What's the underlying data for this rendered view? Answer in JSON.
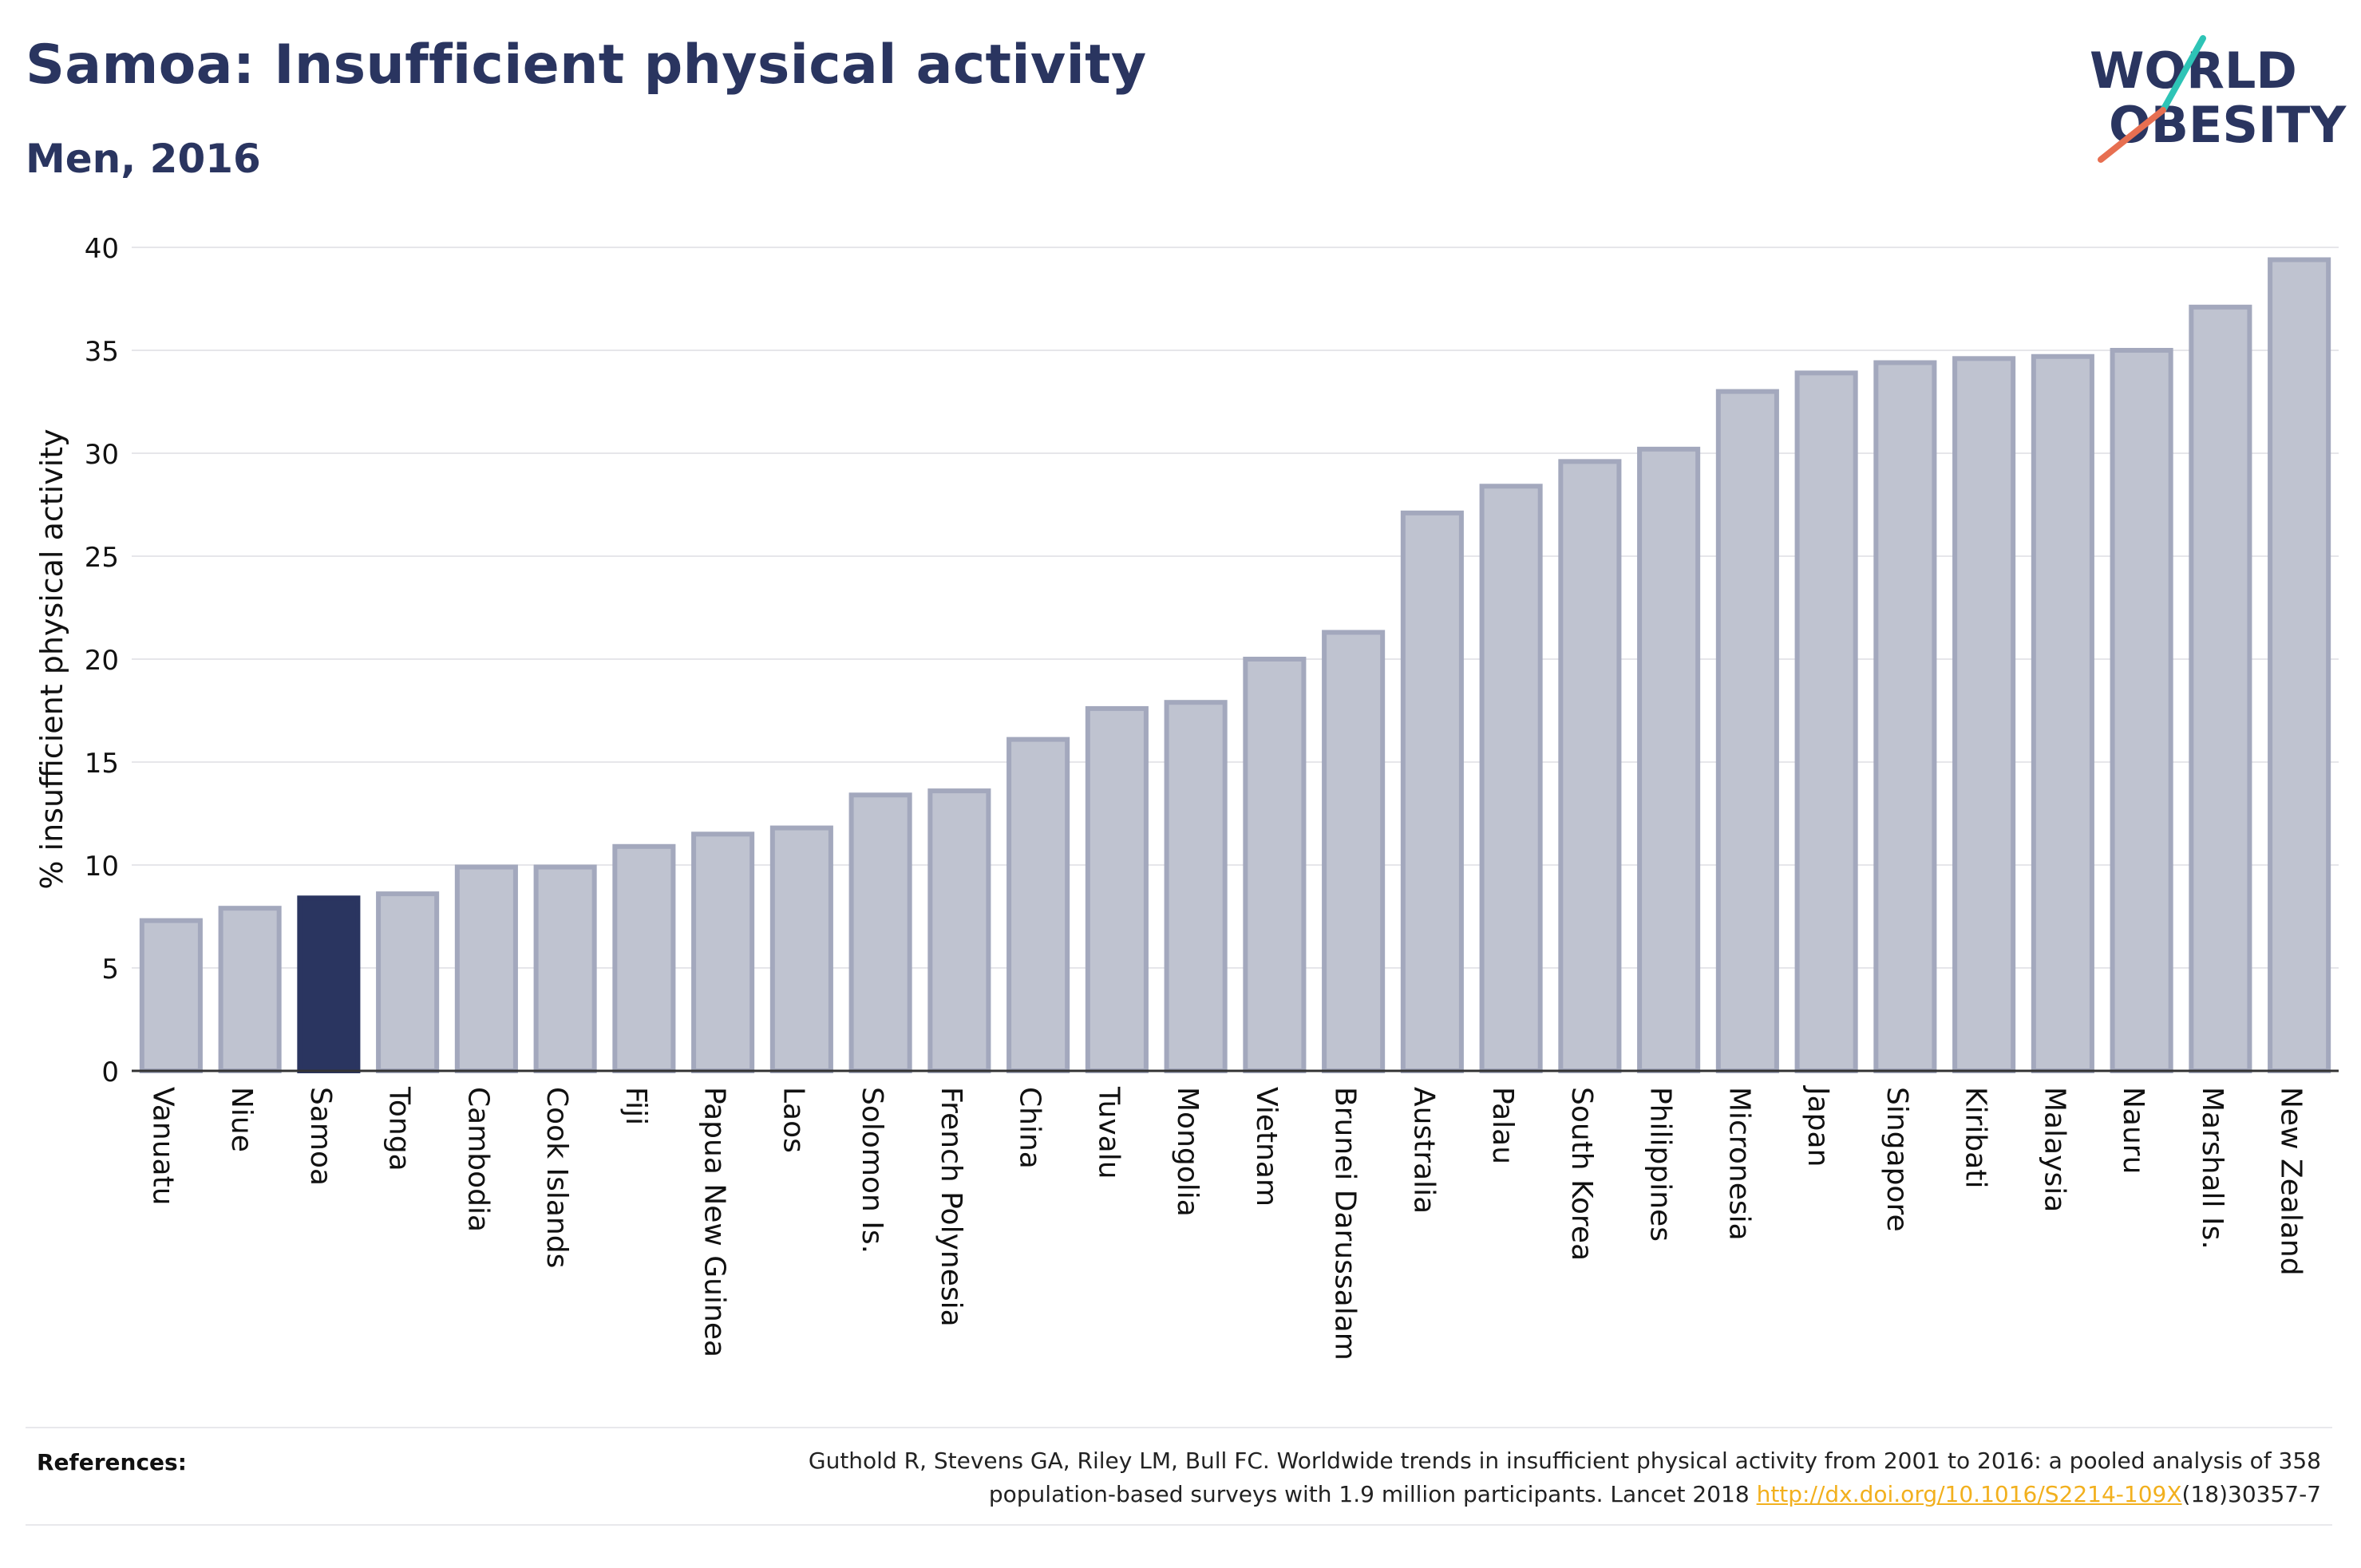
{
  "header": {
    "title": "Samoa: Insufficient physical activity",
    "subtitle": "Men, 2016"
  },
  "logo": {
    "line1": "WORLD",
    "line2": "OBESITY",
    "colors": {
      "text": "#2a3560",
      "slash_top": "#2ec4b6",
      "slash_bottom": "#e76f51"
    }
  },
  "chart_data": {
    "type": "bar",
    "ylabel": "% insufficient physical activity",
    "xlabel": "",
    "ylim": [
      0,
      40
    ],
    "yticks": [
      0,
      5,
      10,
      15,
      20,
      25,
      30,
      35,
      40
    ],
    "grid": true,
    "highlight": "Samoa",
    "colors": {
      "bar": "#bfc3d0",
      "bar_edge": "#a3a8bd",
      "highlight": "#2a3560",
      "grid": "#e6e6ea",
      "axis": "#333333"
    },
    "categories": [
      "Vanuatu",
      "Niue",
      "Samoa",
      "Tonga",
      "Cambodia",
      "Cook Islands",
      "Fiji",
      "Papua New Guinea",
      "Laos",
      "Solomon Is.",
      "French Polynesia",
      "China",
      "Tuvalu",
      "Mongolia",
      "Vietnam",
      "Brunei Darussalam",
      "Australia",
      "Palau",
      "South Korea",
      "Philippines",
      "Micronesia",
      "Japan",
      "Singapore",
      "Kiribati",
      "Malaysia",
      "Nauru",
      "Marshall Is.",
      "New Zealand"
    ],
    "values": [
      7.3,
      7.9,
      8.4,
      8.6,
      9.9,
      9.9,
      10.9,
      11.5,
      11.8,
      13.4,
      13.6,
      16.1,
      17.6,
      17.9,
      20.0,
      21.3,
      27.1,
      28.4,
      29.6,
      30.2,
      33.0,
      33.9,
      34.4,
      34.6,
      34.7,
      35.0,
      37.1,
      39.4
    ]
  },
  "references": {
    "label": "References:",
    "line1": "Guthold R, Stevens GA, Riley LM, Bull FC. Worldwide trends in insufficient physical activity from 2001 to 2016: a pooled analysis of 358",
    "line2_prefix": "population-based surveys with 1.9 million participants. Lancet 2018 ",
    "link": "http://dx.doi.org/10.1016/S2214-109X",
    "line2_suffix": "(18)30357-7"
  }
}
